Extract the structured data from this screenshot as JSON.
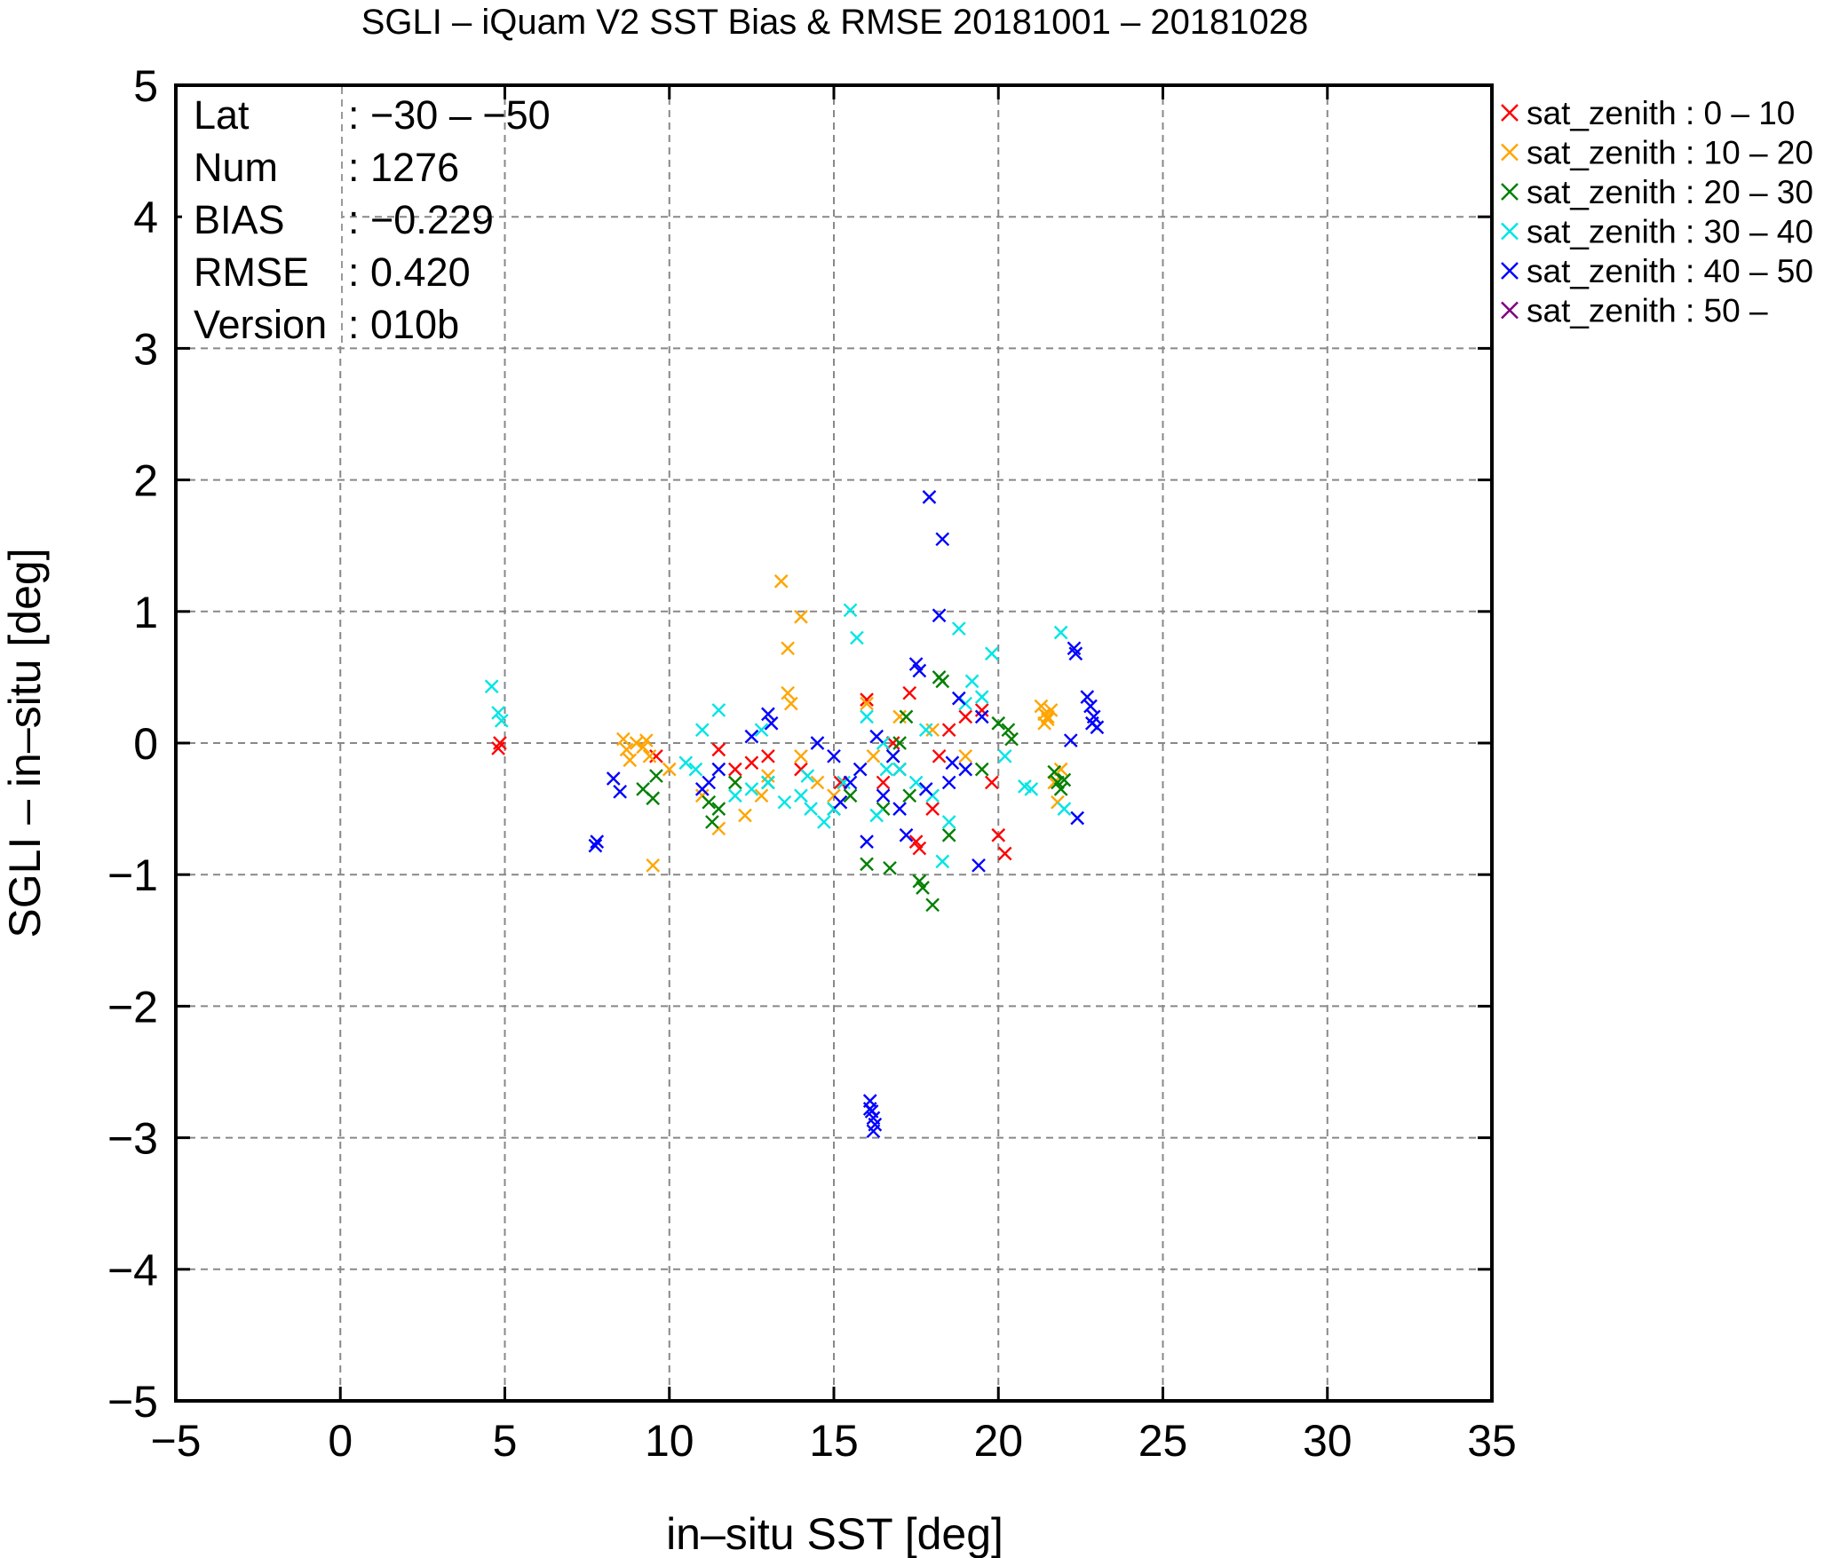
{
  "chart_data": {
    "type": "scatter",
    "title": "SGLI – iQuam V2 SST Bias & RMSE 20181001 – 20181028",
    "xlabel": "in–situ SST [deg]",
    "ylabel": "SGLI – in–situ [deg]",
    "xlim": [
      -5,
      35
    ],
    "ylim": [
      -5,
      5
    ],
    "xticks": [
      -5,
      0,
      5,
      10,
      15,
      20,
      25,
      30,
      35
    ],
    "yticks": [
      -5,
      -4,
      -3,
      -2,
      -1,
      0,
      1,
      2,
      3,
      4,
      5
    ],
    "xtick_labels": [
      "−5",
      "0",
      "5",
      "10",
      "15",
      "20",
      "25",
      "30",
      "35"
    ],
    "ytick_labels": [
      "−5",
      "−4",
      "−3",
      "−2",
      "−1",
      "0",
      "1",
      "2",
      "3",
      "4",
      "5"
    ],
    "grid": true,
    "legend_position": "outside-top-right",
    "marker": "x",
    "stats": [
      {
        "label": "Lat",
        "value": ": −30 – −50"
      },
      {
        "label": "Num",
        "value": ": 1276"
      },
      {
        "label": "BIAS",
        "value": ": −0.229"
      },
      {
        "label": "RMSE",
        "value": ": 0.420"
      },
      {
        "label": "Version",
        "value": ": 010b"
      }
    ],
    "series": [
      {
        "name": "sat_zenith :  0 – 10",
        "color": "#ff0000",
        "points": [
          [
            4.85,
            0.0
          ],
          [
            4.8,
            -0.04
          ],
          [
            9.6,
            -0.1
          ],
          [
            11.5,
            -0.05
          ],
          [
            12.0,
            -0.2
          ],
          [
            12.5,
            -0.15
          ],
          [
            13.0,
            -0.1
          ],
          [
            14.0,
            -0.2
          ],
          [
            15.2,
            -0.3
          ],
          [
            16.0,
            0.33
          ],
          [
            16.5,
            -0.3
          ],
          [
            17.0,
            -0.2
          ],
          [
            17.3,
            0.38
          ],
          [
            17.5,
            -0.75
          ],
          [
            17.6,
            -0.8
          ],
          [
            18.0,
            -0.5
          ],
          [
            18.5,
            0.1
          ],
          [
            19.0,
            0.2
          ],
          [
            19.5,
            0.25
          ],
          [
            19.8,
            -0.3
          ],
          [
            20.0,
            -0.7
          ],
          [
            20.2,
            -0.84
          ],
          [
            18.2,
            -0.1
          ],
          [
            16.8,
            0.0
          ]
        ]
      },
      {
        "name": "sat_zenith : 10 – 20",
        "color": "#ffa500",
        "points": [
          [
            8.6,
            0.03
          ],
          [
            8.7,
            -0.05
          ],
          [
            8.8,
            -0.13
          ],
          [
            9.0,
            0.0
          ],
          [
            9.2,
            -0.03
          ],
          [
            9.3,
            0.02
          ],
          [
            9.4,
            -0.1
          ],
          [
            9.5,
            -0.93
          ],
          [
            10.0,
            -0.2
          ],
          [
            11.0,
            -0.4
          ],
          [
            11.5,
            -0.65
          ],
          [
            12.0,
            -0.3
          ],
          [
            12.3,
            -0.55
          ],
          [
            12.8,
            -0.4
          ],
          [
            13.0,
            -0.25
          ],
          [
            13.4,
            1.23
          ],
          [
            13.6,
            0.72
          ],
          [
            14.0,
            0.96
          ],
          [
            13.6,
            0.38
          ],
          [
            13.7,
            0.3
          ],
          [
            14.0,
            -0.1
          ],
          [
            14.5,
            -0.3
          ],
          [
            15.0,
            -0.4
          ],
          [
            16.0,
            0.3
          ],
          [
            16.2,
            -0.1
          ],
          [
            17.0,
            0.2
          ],
          [
            18.0,
            0.1
          ],
          [
            19.0,
            -0.1
          ],
          [
            21.3,
            0.28
          ],
          [
            21.4,
            0.22
          ],
          [
            21.5,
            0.18
          ],
          [
            21.6,
            0.25
          ],
          [
            21.5,
            0.2
          ],
          [
            21.4,
            0.15
          ],
          [
            21.7,
            -0.3
          ],
          [
            21.8,
            -0.45
          ],
          [
            21.9,
            -0.2
          ]
        ]
      },
      {
        "name": "sat_zenith : 20 – 30",
        "color": "#008000",
        "points": [
          [
            9.2,
            -0.35
          ],
          [
            9.6,
            -0.25
          ],
          [
            9.5,
            -0.42
          ],
          [
            11.3,
            -0.6
          ],
          [
            11.5,
            -0.5
          ],
          [
            11.2,
            -0.45
          ],
          [
            12.0,
            -0.3
          ],
          [
            13.0,
            -0.3
          ],
          [
            15.0,
            -0.5
          ],
          [
            15.5,
            -0.4
          ],
          [
            16.0,
            -0.92
          ],
          [
            16.5,
            -0.5
          ],
          [
            16.7,
            -0.95
          ],
          [
            17.0,
            0.0
          ],
          [
            17.3,
            -0.4
          ],
          [
            17.6,
            -1.05
          ],
          [
            17.7,
            -1.1
          ],
          [
            18.0,
            -1.23
          ],
          [
            18.2,
            0.5
          ],
          [
            18.3,
            0.47
          ],
          [
            18.5,
            -0.7
          ],
          [
            19.5,
            -0.2
          ],
          [
            20.0,
            0.15
          ],
          [
            20.3,
            0.1
          ],
          [
            20.4,
            0.03
          ],
          [
            21.7,
            -0.22
          ],
          [
            21.8,
            -0.3
          ],
          [
            21.9,
            -0.35
          ],
          [
            22.0,
            -0.28
          ],
          [
            17.2,
            0.2
          ],
          [
            16.8,
            -0.1
          ]
        ]
      },
      {
        "name": "sat_zenith : 30 – 40",
        "color": "#00e5e5",
        "points": [
          [
            4.6,
            0.43
          ],
          [
            4.8,
            0.23
          ],
          [
            4.9,
            0.17
          ],
          [
            10.5,
            -0.15
          ],
          [
            10.8,
            -0.2
          ],
          [
            11.0,
            0.1
          ],
          [
            11.5,
            0.25
          ],
          [
            12.0,
            -0.4
          ],
          [
            12.5,
            -0.35
          ],
          [
            12.8,
            0.1
          ],
          [
            13.0,
            -0.3
          ],
          [
            13.5,
            -0.45
          ],
          [
            14.0,
            -0.4
          ],
          [
            14.3,
            -0.5
          ],
          [
            14.7,
            -0.6
          ],
          [
            15.0,
            -0.5
          ],
          [
            15.3,
            -0.3
          ],
          [
            15.5,
            1.01
          ],
          [
            15.7,
            0.8
          ],
          [
            16.0,
            0.2
          ],
          [
            16.3,
            -0.55
          ],
          [
            16.5,
            0.0
          ],
          [
            17.0,
            -0.2
          ],
          [
            17.5,
            -0.3
          ],
          [
            18.0,
            -0.4
          ],
          [
            18.3,
            -0.9
          ],
          [
            18.5,
            -0.6
          ],
          [
            18.8,
            0.87
          ],
          [
            19.0,
            0.3
          ],
          [
            19.2,
            0.47
          ],
          [
            19.5,
            0.35
          ],
          [
            19.8,
            0.68
          ],
          [
            20.2,
            -0.1
          ],
          [
            20.8,
            -0.33
          ],
          [
            21.0,
            -0.35
          ],
          [
            21.9,
            0.84
          ],
          [
            22.0,
            -0.5
          ],
          [
            17.8,
            0.1
          ],
          [
            16.6,
            -0.2
          ],
          [
            14.2,
            -0.25
          ]
        ]
      },
      {
        "name": "sat_zenith : 40 – 50",
        "color": "#0000ff",
        "points": [
          [
            7.8,
            -0.75
          ],
          [
            7.75,
            -0.78
          ],
          [
            8.3,
            -0.27
          ],
          [
            8.5,
            -0.37
          ],
          [
            11.0,
            -0.35
          ],
          [
            11.2,
            -0.3
          ],
          [
            11.5,
            -0.2
          ],
          [
            12.5,
            0.05
          ],
          [
            13.0,
            0.22
          ],
          [
            13.1,
            0.15
          ],
          [
            14.5,
            0.0
          ],
          [
            15.0,
            -0.1
          ],
          [
            15.5,
            -0.3
          ],
          [
            16.0,
            -0.75
          ],
          [
            16.1,
            -2.72
          ],
          [
            16.15,
            -2.8
          ],
          [
            16.2,
            -2.85
          ],
          [
            16.25,
            -2.9
          ],
          [
            16.2,
            -2.95
          ],
          [
            16.1,
            -2.78
          ],
          [
            16.5,
            -0.4
          ],
          [
            17.0,
            -0.5
          ],
          [
            17.2,
            -0.7
          ],
          [
            17.5,
            0.6
          ],
          [
            17.6,
            0.55
          ],
          [
            17.9,
            1.87
          ],
          [
            18.2,
            0.97
          ],
          [
            18.3,
            1.55
          ],
          [
            18.5,
            -0.3
          ],
          [
            18.8,
            0.34
          ],
          [
            19.0,
            -0.2
          ],
          [
            19.4,
            -0.93
          ],
          [
            19.5,
            0.2
          ],
          [
            22.3,
            0.72
          ],
          [
            22.35,
            0.68
          ],
          [
            22.4,
            -0.57
          ],
          [
            22.2,
            0.02
          ],
          [
            22.7,
            0.35
          ],
          [
            22.8,
            0.28
          ],
          [
            22.9,
            0.2
          ],
          [
            22.85,
            0.15
          ],
          [
            23.0,
            0.12
          ],
          [
            15.8,
            -0.2
          ],
          [
            16.8,
            -0.1
          ],
          [
            17.8,
            -0.35
          ],
          [
            18.6,
            -0.15
          ],
          [
            15.2,
            -0.45
          ],
          [
            16.3,
            0.05
          ]
        ]
      },
      {
        "name": "sat_zenith : 50 –",
        "color": "#800080",
        "points": []
      }
    ]
  }
}
